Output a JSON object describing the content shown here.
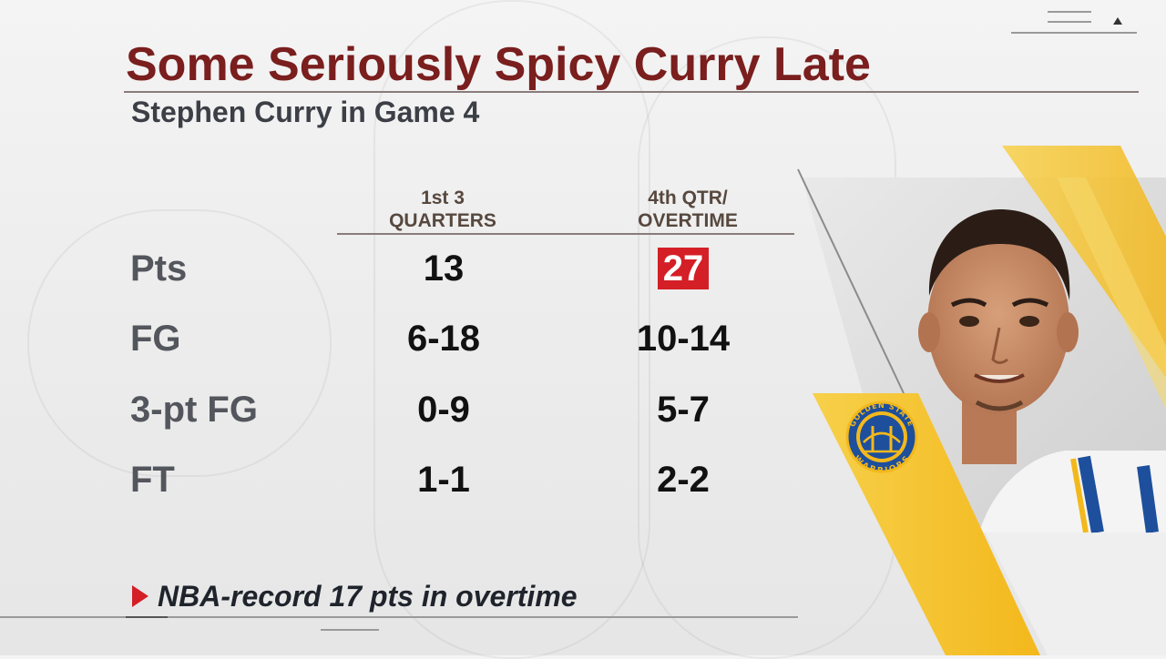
{
  "title": "Some Seriously Spicy Curry Late",
  "subtitle": "Stephen Curry in Game 4",
  "columns": [
    {
      "lines": [
        "1st 3",
        "QUARTERS"
      ]
    },
    {
      "lines": [
        "4th QTR/",
        "OVERTIME"
      ]
    }
  ],
  "rows": [
    {
      "label": "Pts",
      "first3": "13",
      "late": "27",
      "late_highlight": true
    },
    {
      "label": "FG",
      "first3": "6-18",
      "late": "10-14"
    },
    {
      "label": "3-pt FG",
      "first3": "0-9",
      "late": "5-7"
    },
    {
      "label": "FT",
      "first3": "1-1",
      "late": "2-2"
    }
  ],
  "note": "NBA-record 17 pts in overtime",
  "team_logo": {
    "top_text": "GOLDEN STATE",
    "bottom_text": "WARRIORS"
  },
  "colors": {
    "title": "#7a1e1e",
    "highlight": "#d41f26",
    "team_yellow": "#f5c42c",
    "team_blue": "#1d4f9c"
  },
  "icons": {
    "note_marker": "triangle-right-icon",
    "menu": "menu-lines-icon",
    "collapse": "triangle-up-icon"
  }
}
